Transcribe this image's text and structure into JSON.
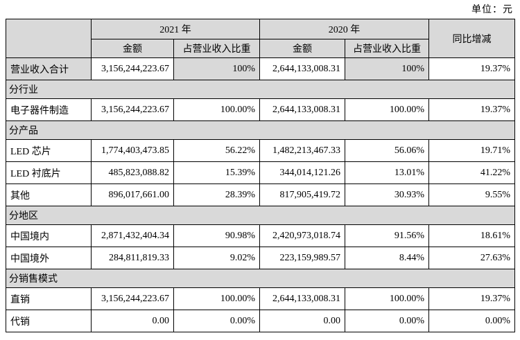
{
  "unit_label": "单位：元",
  "colors": {
    "gray_bg": "#d9d9d9",
    "border": "#000000",
    "text": "#000000",
    "page_bg": "#ffffff"
  },
  "table": {
    "header": {
      "year_2021": "2021 年",
      "year_2020": "2020 年",
      "yoy": "同比增减",
      "amount": "金额",
      "ratio": "占营业收入比重"
    },
    "rows": [
      {
        "type": "data",
        "label": "营业收入合计",
        "values": [
          "3,156,244,223.67",
          "100%",
          "2,644,133,008.31",
          "100%",
          "19.37%"
        ],
        "gray_cells": [
          0,
          2,
          4
        ]
      },
      {
        "type": "section",
        "label": "分行业"
      },
      {
        "type": "data",
        "label": "电子器件制造",
        "values": [
          "3,156,244,223.67",
          "100.00%",
          "2,644,133,008.31",
          "100.00%",
          "19.37%"
        ]
      },
      {
        "type": "section",
        "label": "分产品"
      },
      {
        "type": "data",
        "label": "LED 芯片",
        "values": [
          "1,774,403,473.85",
          "56.22%",
          "1,482,213,467.33",
          "56.06%",
          "19.71%"
        ]
      },
      {
        "type": "data",
        "label": "LED 衬底片",
        "values": [
          "485,823,088.82",
          "15.39%",
          "344,014,121.26",
          "13.01%",
          "41.22%"
        ]
      },
      {
        "type": "data",
        "label": "其他",
        "values": [
          "896,017,661.00",
          "28.39%",
          "817,905,419.72",
          "30.93%",
          "9.55%"
        ]
      },
      {
        "type": "section",
        "label": "分地区"
      },
      {
        "type": "data",
        "label": "中国境内",
        "values": [
          "2,871,432,404.34",
          "90.98%",
          "2,420,973,018.74",
          "91.56%",
          "18.61%"
        ]
      },
      {
        "type": "data",
        "label": "中国境外",
        "values": [
          "284,811,819.33",
          "9.02%",
          "223,159,989.57",
          "8.44%",
          "27.63%"
        ]
      },
      {
        "type": "section",
        "label": "分销售模式"
      },
      {
        "type": "data",
        "label": "直销",
        "values": [
          "3,156,244,223.67",
          "100.00%",
          "2,644,133,008.31",
          "100.00%",
          "19.37%"
        ]
      },
      {
        "type": "data",
        "label": "代销",
        "values": [
          "0.00",
          "0.00%",
          "0.00",
          "0.00%",
          "0.00%"
        ]
      }
    ]
  }
}
